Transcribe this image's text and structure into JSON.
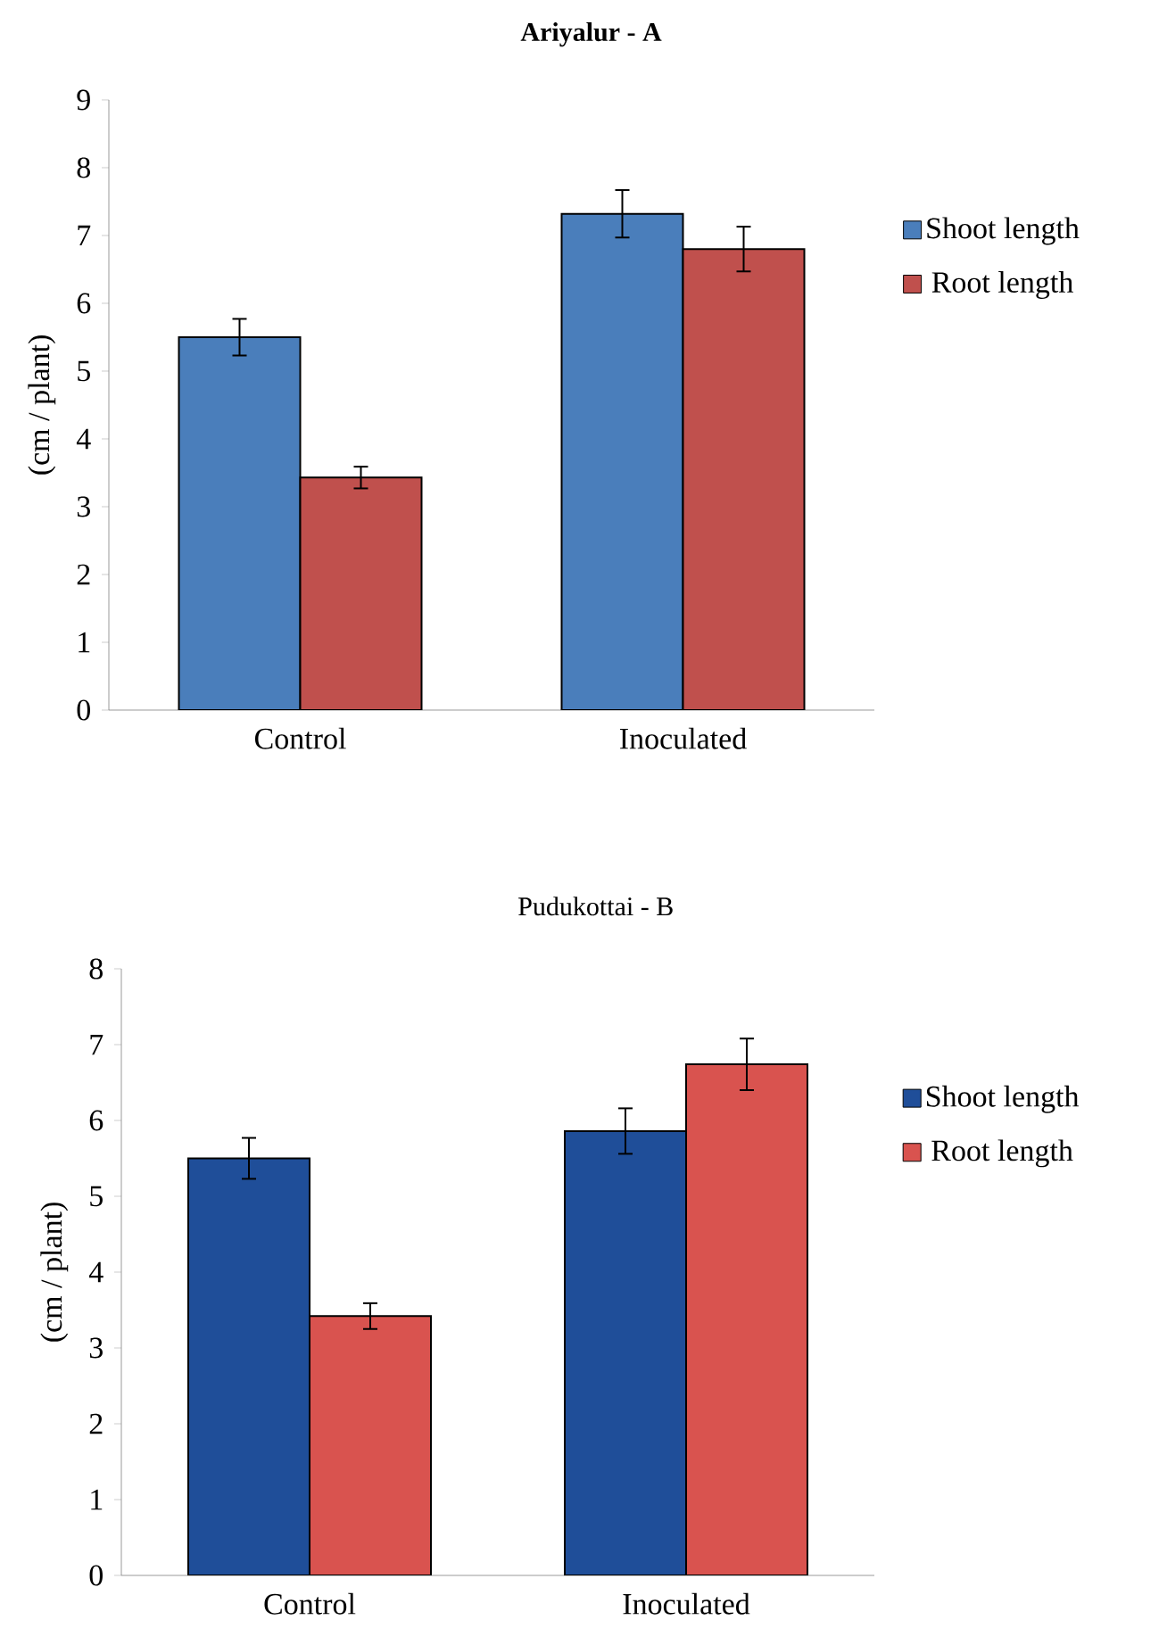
{
  "chart_data": [
    {
      "type": "bar",
      "title": "Ariyalur - A",
      "ylabel": "(cm / plant)",
      "categories": [
        "Control",
        "Inoculated"
      ],
      "series": [
        {
          "name": "Shoot length",
          "color": "#4a7ebb",
          "values": [
            5.5,
            7.32
          ],
          "errors": [
            0.27,
            0.35
          ]
        },
        {
          "name": "Root length",
          "color": "#c0504d",
          "values": [
            3.43,
            6.8
          ],
          "errors": [
            0.16,
            0.33
          ]
        }
      ],
      "ylim": [
        0,
        9
      ],
      "yticks": [
        0,
        1,
        2,
        3,
        4,
        5,
        6,
        7,
        8,
        9
      ],
      "legend": "right",
      "grid": false
    },
    {
      "type": "bar",
      "title": "Pudukottai - B",
      "ylabel": "(cm / plant)",
      "categories": [
        "Control",
        "Inoculated"
      ],
      "series": [
        {
          "name": "Shoot length",
          "color": "#1f4e99",
          "values": [
            5.5,
            5.86
          ],
          "errors": [
            0.27,
            0.3
          ]
        },
        {
          "name": "Root length",
          "color": "#d9534f",
          "values": [
            3.42,
            6.74
          ],
          "errors": [
            0.17,
            0.34
          ]
        }
      ],
      "ylim": [
        0,
        8
      ],
      "yticks": [
        0,
        1,
        2,
        3,
        4,
        5,
        6,
        7,
        8
      ],
      "legend": "right",
      "grid": false
    }
  ]
}
